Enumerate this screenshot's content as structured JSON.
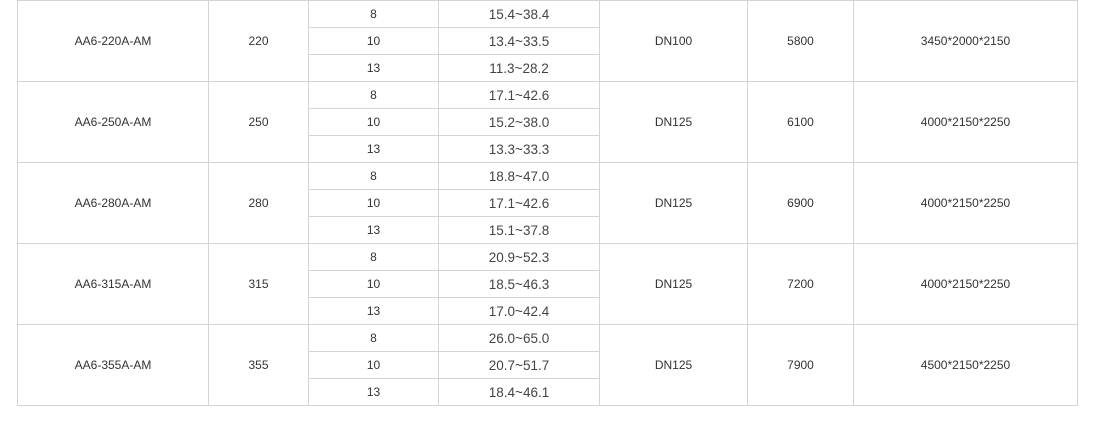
{
  "rows": [
    {
      "model": "AA6-220A-AM",
      "power": "220",
      "pressures": [
        "8",
        "10",
        "13"
      ],
      "ranges": [
        "15.4~38.4",
        "13.4~33.5",
        "11.3~28.2"
      ],
      "outlet": "DN100",
      "weight": "5800",
      "dimensions": "3450*2000*2150"
    },
    {
      "model": "AA6-250A-AM",
      "power": "250",
      "pressures": [
        "8",
        "10",
        "13"
      ],
      "ranges": [
        "17.1~42.6",
        "15.2~38.0",
        "13.3~33.3"
      ],
      "outlet": "DN125",
      "weight": "6100",
      "dimensions": "4000*2150*2250"
    },
    {
      "model": "AA6-280A-AM",
      "power": "280",
      "pressures": [
        "8",
        "10",
        "13"
      ],
      "ranges": [
        "18.8~47.0",
        "17.1~42.6",
        "15.1~37.8"
      ],
      "outlet": "DN125",
      "weight": "6900",
      "dimensions": "4000*2150*2250"
    },
    {
      "model": "AA6-315A-AM",
      "power": "315",
      "pressures": [
        "8",
        "10",
        "13"
      ],
      "ranges": [
        "20.9~52.3",
        "18.5~46.3",
        "17.0~42.4"
      ],
      "outlet": "DN125",
      "weight": "7200",
      "dimensions": "4000*2150*2250"
    },
    {
      "model": "AA6-355A-AM",
      "power": "355",
      "pressures": [
        "8",
        "10",
        "13"
      ],
      "ranges": [
        "26.0~65.0",
        "20.7~51.7",
        "18.4~46.1"
      ],
      "outlet": "DN125",
      "weight": "7900",
      "dimensions": "4500*2150*2250"
    }
  ]
}
